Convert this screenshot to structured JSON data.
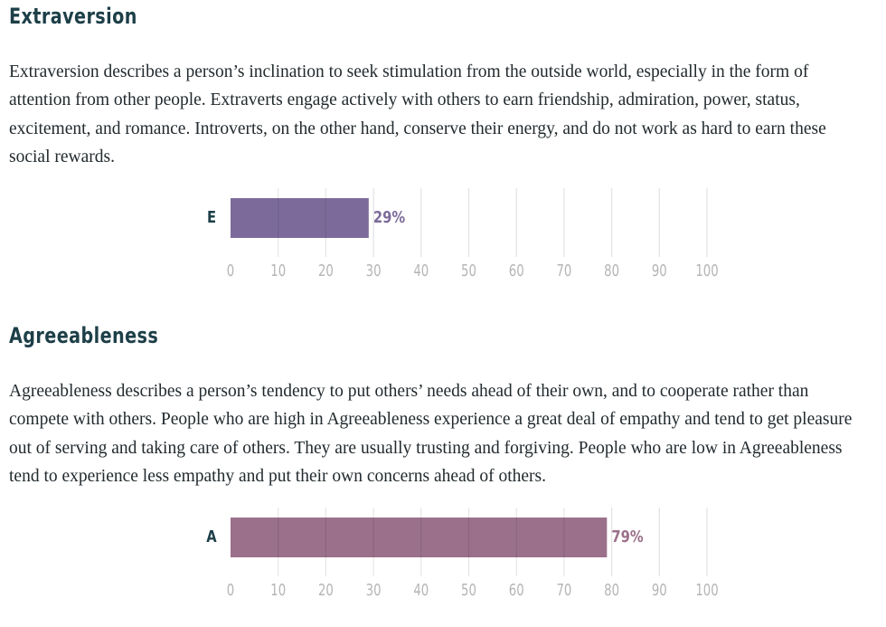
{
  "sections": [
    {
      "title": "Extraversion",
      "description": "Extraversion describes a person’s inclination to seek stimulation from the outside world, especially in the form of attention from other people. Extraverts engage actively with others to earn friendship, admiration, power, status, excitement, and romance. Introverts, on the other hand, conserve their energy, and do not work as hard to earn these social rewards."
    },
    {
      "title": "Agreeableness",
      "description": "Agreeableness describes a person’s tendency to put others’ needs ahead of their own, and to cooperate rather than compete with others. People who are high in Agreeableness experience a great deal of empathy and tend to get pleasure out of serving and taking care of others. They are usually trusting and forgiving. People who are low in Agreeableness tend to experience less empathy and put their own concerns ahead of others."
    }
  ],
  "chart_data": [
    {
      "type": "bar",
      "orientation": "horizontal",
      "categories": [
        "E"
      ],
      "values": [
        29
      ],
      "value_label": "29%",
      "xlim": [
        0,
        100
      ],
      "xticks": [
        0,
        10,
        20,
        30,
        40,
        50,
        60,
        70,
        80,
        90,
        100
      ],
      "bar_color": "#7c6b9a",
      "label_color": "#7c6b9a",
      "grid": true
    },
    {
      "type": "bar",
      "orientation": "horizontal",
      "categories": [
        "A"
      ],
      "values": [
        79
      ],
      "value_label": "79%",
      "xlim": [
        0,
        100
      ],
      "xticks": [
        0,
        10,
        20,
        30,
        40,
        50,
        60,
        70,
        80,
        90,
        100
      ],
      "bar_color": "#9b708b",
      "label_color": "#9b708b",
      "grid": true
    }
  ],
  "colors": {
    "heading": "#1d3f48",
    "body_text": "#222a2e",
    "category_label": "#1d3f48",
    "tick_label": "#b5b5b5",
    "gridline": "#e2e2e2"
  }
}
